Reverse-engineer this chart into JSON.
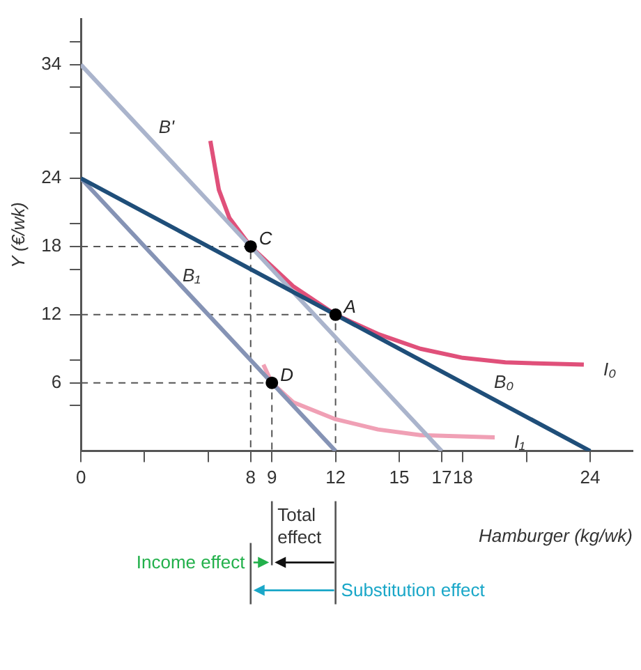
{
  "chart_data": {
    "type": "line",
    "xlabel": "Hamburger (kg/wk)",
    "ylabel": "Y (€/wk)",
    "xlim": [
      0,
      26
    ],
    "ylim": [
      0,
      38
    ],
    "xticks": [
      0,
      {
        "value": 3,
        "label": null
      },
      {
        "value": 6,
        "label": null
      },
      8,
      9,
      12,
      15,
      17,
      18,
      {
        "value": 21,
        "label": null
      },
      24
    ],
    "yticks": [
      {
        "value": 4,
        "label": null
      },
      6,
      {
        "value": 8,
        "label": null
      },
      12,
      {
        "value": 16,
        "label": null
      },
      18,
      {
        "value": 20,
        "label": null
      },
      24,
      {
        "value": 28,
        "label": null
      },
      {
        "value": 32,
        "label": null
      },
      34,
      {
        "value": 36,
        "label": null
      }
    ],
    "grid": false,
    "legend": false,
    "series": [
      {
        "name": "B₀",
        "color": "#1f4e79",
        "x": [
          0,
          24
        ],
        "values": [
          24,
          0
        ]
      },
      {
        "name": "B'",
        "color": "#aab4cc",
        "x": [
          0,
          17
        ],
        "values": [
          34,
          0
        ]
      },
      {
        "name": "B₁",
        "color": "#8593b5",
        "x": [
          0,
          12
        ],
        "values": [
          24,
          0
        ]
      },
      {
        "name": "I₀",
        "color": "#e0507a",
        "x": [
          6.1,
          6.5,
          7,
          8,
          10,
          12,
          14,
          16,
          18,
          20,
          23.7
        ],
        "values": [
          27.3,
          23,
          20.5,
          18,
          14.5,
          12,
          10.3,
          9,
          8.2,
          7.8,
          7.6
        ]
      },
      {
        "name": "I₁",
        "color": "#f0a0b5",
        "x": [
          8.6,
          9,
          10,
          12,
          14,
          16,
          19.5
        ],
        "values": [
          7.6,
          6,
          4.3,
          2.8,
          1.9,
          1.4,
          1.2
        ]
      },
      {
        "color": "#555555",
        "line_style": "dashed",
        "x": [
          0,
          8,
          8
        ],
        "values": [
          18,
          18,
          0
        ]
      },
      {
        "color": "#555555",
        "line_style": "dashed",
        "x": [
          0,
          12,
          12
        ],
        "values": [
          12,
          12,
          0
        ]
      },
      {
        "color": "#555555",
        "line_style": "dashed",
        "x": [
          0,
          9,
          9
        ],
        "values": [
          6,
          6,
          0
        ]
      },
      {
        "type": "scatter",
        "marker": "circle",
        "color": "#000000",
        "x": [
          12,
          8,
          9
        ],
        "values": [
          12,
          18,
          6
        ]
      }
    ],
    "annotations": [
      {
        "text": "A",
        "x": 12,
        "y": 12
      },
      {
        "text": "C",
        "x": 8,
        "y": 18
      },
      {
        "text": "D",
        "x": 9,
        "y": 6
      },
      "Total effect",
      "Income effect",
      "Substitution effect"
    ]
  }
}
